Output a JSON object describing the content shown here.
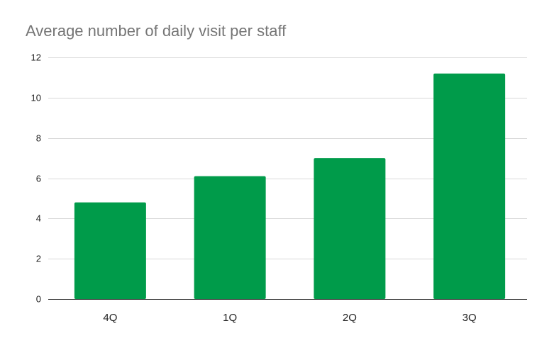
{
  "chart_data": {
    "type": "bar",
    "title": "Average number of daily visit per staff",
    "xlabel": "",
    "ylabel": "",
    "categories": [
      "4Q",
      "1Q",
      "2Q",
      "3Q"
    ],
    "values": [
      4.8,
      6.1,
      7.0,
      11.2
    ],
    "ylim": [
      0,
      12
    ],
    "yticks": [
      0,
      2,
      4,
      6,
      8,
      10,
      12
    ],
    "grid": true,
    "legend": "none",
    "colors": {
      "bar": "#009b4a",
      "grid": "#d9d9d9",
      "axis": "#333333"
    }
  }
}
